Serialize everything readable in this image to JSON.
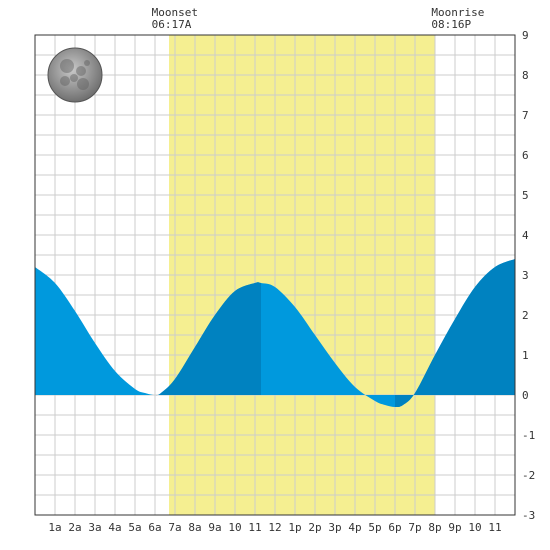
{
  "chart_data": {
    "type": "area",
    "title": "",
    "xlabel": "",
    "ylabel": "",
    "xlim": [
      0,
      24
    ],
    "ylim": [
      -3,
      9
    ],
    "x_tick_labels": [
      "1a",
      "2a",
      "3a",
      "4a",
      "5a",
      "6a",
      "7a",
      "8a",
      "9a",
      "10",
      "11",
      "12",
      "1p",
      "2p",
      "3p",
      "4p",
      "5p",
      "6p",
      "7p",
      "8p",
      "9p",
      "10",
      "11"
    ],
    "y_tick_labels": [
      "9",
      "8",
      "7",
      "6",
      "5",
      "4",
      "3",
      "2",
      "1",
      "0",
      "-1",
      "-2",
      "-3"
    ],
    "grid": true,
    "daylight_band": {
      "x_start": 6.7,
      "x_end": 20.0,
      "color": "#f5ef91"
    },
    "annotations": [
      {
        "title": "Moonset",
        "time": "06:17A",
        "x": 6.28
      },
      {
        "title": "Moonrise",
        "time": "08:16P",
        "x": 20.27
      }
    ],
    "moon_phase_icon": "full-moon-icon",
    "colors": {
      "tide_light": "#0099dd",
      "tide_dark": "#0082c0",
      "grid": "#cccccc",
      "axis": "#333333"
    },
    "series": [
      {
        "x": [
          0,
          1,
          2,
          3,
          4,
          5,
          5.5,
          6,
          6.3,
          7,
          8,
          9,
          10,
          11,
          11.3,
          12,
          13,
          14,
          15,
          16,
          17,
          17.5,
          18,
          18.4,
          19,
          20,
          21,
          22,
          23,
          24
        ],
        "values": [
          3.2,
          2.8,
          2.1,
          1.3,
          0.6,
          0.15,
          0.05,
          0.0,
          0.05,
          0.4,
          1.2,
          2.0,
          2.6,
          2.8,
          2.8,
          2.7,
          2.2,
          1.5,
          0.8,
          0.2,
          -0.15,
          -0.25,
          -0.3,
          -0.25,
          0.05,
          1.0,
          1.9,
          2.7,
          3.2,
          3.4
        ]
      }
    ]
  }
}
